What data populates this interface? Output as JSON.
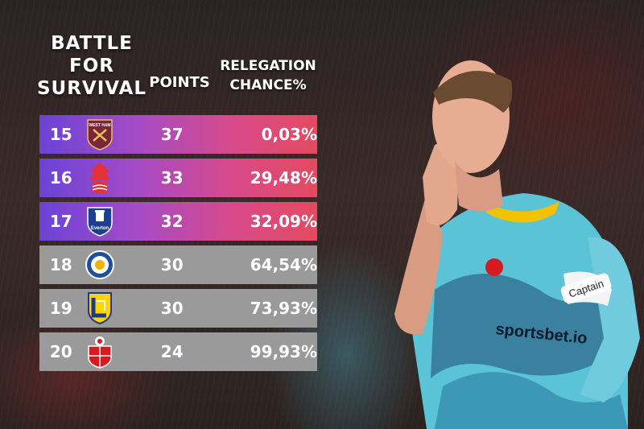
{
  "header": {
    "title_lines": [
      "BATTLE",
      "FOR",
      "SURVIVAL"
    ],
    "points_label": "POINTS",
    "chance_lines": [
      "RELEGATION",
      "CHANCE%"
    ]
  },
  "rows": [
    {
      "position": "15",
      "crest_icon": "west-ham-crest-icon",
      "points": "37",
      "chance": "0,03%"
    },
    {
      "position": "16",
      "crest_icon": "nottingham-forest-crest-icon",
      "points": "33",
      "chance": "29,48%"
    },
    {
      "position": "17",
      "crest_icon": "everton-crest-icon",
      "points": "32",
      "chance": "32,09%"
    },
    {
      "position": "18",
      "crest_icon": "leicester-city-crest-icon",
      "points": "30",
      "chance": "64,54%"
    },
    {
      "position": "19",
      "crest_icon": "leeds-united-crest-icon",
      "points": "30",
      "chance": "73,93%"
    },
    {
      "position": "20",
      "crest_icon": "southampton-crest-icon",
      "points": "24",
      "chance": "99,93%"
    }
  ],
  "crest_text": {
    "west_ham": "WEST HAM",
    "everton": "Everton"
  },
  "colors": {
    "safe_gradient_start": "#6b43d6",
    "safe_gradient_end": "#e44a5f",
    "danger_row": "#9a9a9a",
    "text": "#ffffff"
  },
  "player": {
    "sponsor": "sportsbet.io",
    "armband": "Captain"
  }
}
